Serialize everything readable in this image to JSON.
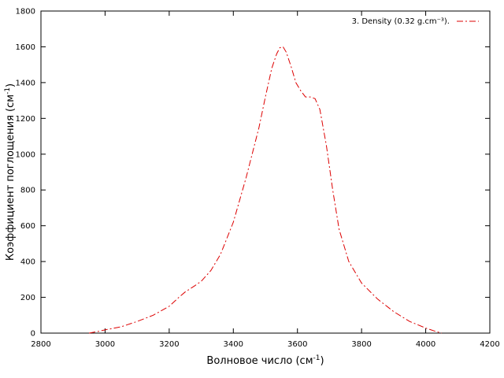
{
  "chart_data": {
    "type": "line",
    "xlabel": {
      "text": "Волновое число (см",
      "sup": "-1",
      "tail": ")"
    },
    "ylabel": {
      "text": "Коэффициент поглощения (см",
      "sup": "-1",
      "tail": ")"
    },
    "xlim": [
      2800,
      4200
    ],
    "ylim": [
      0,
      1800
    ],
    "x_ticks": [
      2800,
      3000,
      3200,
      3400,
      3600,
      3800,
      4000,
      4200
    ],
    "y_ticks": [
      0,
      200,
      400,
      600,
      800,
      1000,
      1200,
      1400,
      1600,
      1800
    ],
    "x_tick_labels": [
      "2800",
      "3000",
      "3200",
      "3400",
      "3600",
      "3800",
      "4000",
      "4200"
    ],
    "y_tick_labels": [
      "0",
      "200",
      "400",
      "600",
      "800",
      "1000",
      "1200",
      "1400",
      "1600",
      "1800"
    ],
    "grid": false,
    "legend_position": "top-right",
    "series": [
      {
        "name": "3. Density (0.32 g.cm⁻³).",
        "color": "#dd0000",
        "dash": "dash-dot",
        "x": [
          2950,
          2980,
          3000,
          3050,
          3100,
          3150,
          3200,
          3230,
          3250,
          3280,
          3300,
          3330,
          3360,
          3400,
          3440,
          3480,
          3500,
          3520,
          3535,
          3545,
          3555,
          3565,
          3580,
          3595,
          3610,
          3625,
          3640,
          3655,
          3670,
          3690,
          3710,
          3730,
          3760,
          3800,
          3850,
          3900,
          3950,
          4000,
          4030,
          4050
        ],
        "y": [
          0,
          10,
          18,
          35,
          65,
          100,
          150,
          200,
          230,
          265,
          290,
          350,
          440,
          620,
          870,
          1150,
          1320,
          1480,
          1560,
          1595,
          1600,
          1570,
          1490,
          1400,
          1355,
          1320,
          1320,
          1310,
          1250,
          1050,
          800,
          580,
          400,
          280,
          190,
          120,
          65,
          28,
          10,
          0
        ]
      }
    ]
  }
}
